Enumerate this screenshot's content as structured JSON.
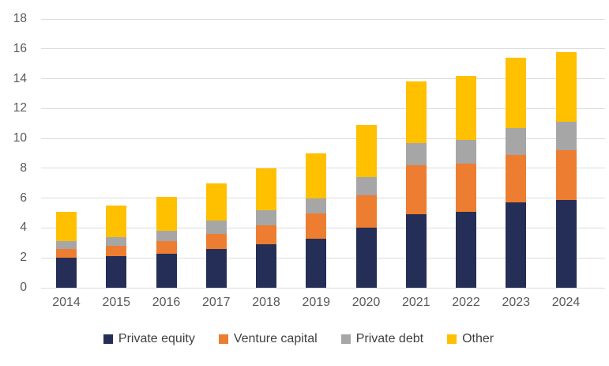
{
  "chart_data": {
    "type": "bar",
    "stacked": true,
    "title": "",
    "xlabel": "",
    "ylabel": "",
    "categories": [
      "2014",
      "2015",
      "2016",
      "2017",
      "2018",
      "2019",
      "2020",
      "2021",
      "2022",
      "2023",
      "2024"
    ],
    "series": [
      {
        "name": "Private equity",
        "color": "#252e56",
        "values": [
          2.0,
          2.1,
          2.3,
          2.6,
          2.9,
          3.3,
          4.0,
          4.9,
          5.1,
          5.7,
          5.9
        ]
      },
      {
        "name": "Venture capital",
        "color": "#ed7d31",
        "values": [
          0.6,
          0.7,
          0.8,
          1.0,
          1.3,
          1.7,
          2.2,
          3.3,
          3.2,
          3.2,
          3.3
        ]
      },
      {
        "name": "Private debt",
        "color": "#a6a6a6",
        "values": [
          0.5,
          0.6,
          0.7,
          0.9,
          1.0,
          1.0,
          1.2,
          1.5,
          1.6,
          1.8,
          1.9
        ]
      },
      {
        "name": "Other",
        "color": "#ffc000",
        "values": [
          2.0,
          2.1,
          2.3,
          2.5,
          2.8,
          3.0,
          3.5,
          4.1,
          4.3,
          4.7,
          4.7
        ]
      }
    ],
    "totals": [
      5.1,
      5.5,
      6.1,
      7.0,
      8.0,
      9.0,
      10.9,
      13.8,
      14.2,
      15.4,
      15.8
    ],
    "ylim": [
      0,
      18
    ],
    "y_ticks": [
      0,
      2,
      4,
      6,
      8,
      10,
      12,
      14,
      16,
      18
    ],
    "grid": true,
    "legend_position": "bottom",
    "legend_labels": [
      "Private equity",
      "Venture capital",
      "Private debt",
      "Other"
    ]
  },
  "style": {
    "background": "#ffffff",
    "gridline_color": "#dcdcdc",
    "tick_text_color": "#595959",
    "legend_text_color": "#404040"
  }
}
